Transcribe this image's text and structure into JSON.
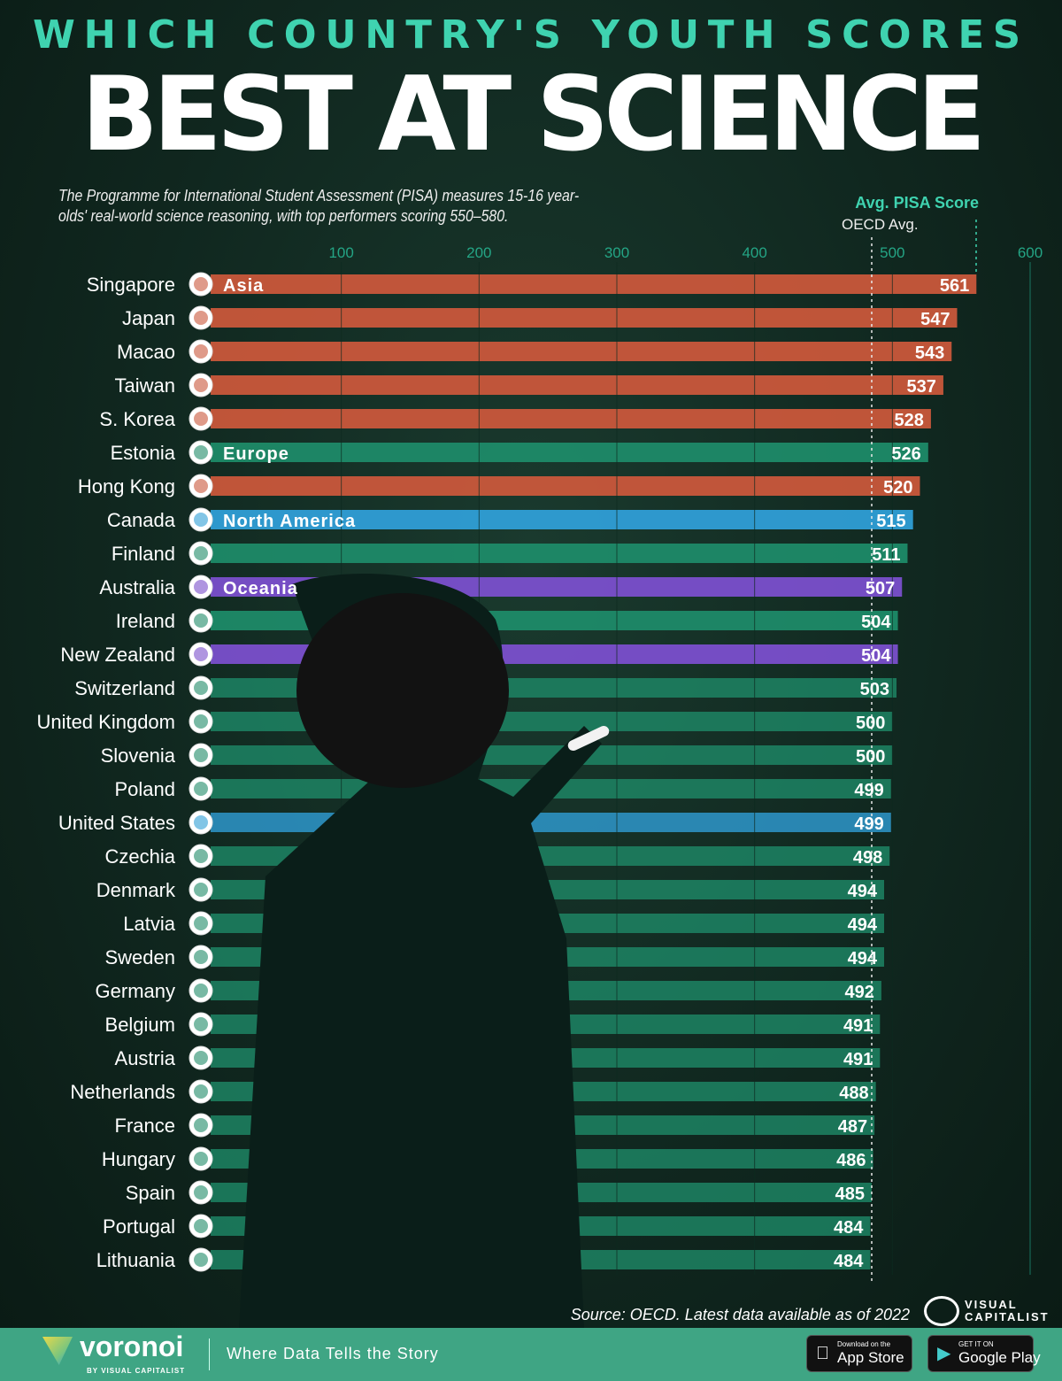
{
  "header": {
    "kicker": "WHICH COUNTRY'S YOUTH SCORES",
    "title": "BEST AT SCIENCE",
    "subtitle": "The Programme for International Student Assessment (PISA) measures 15-16 year-olds' real-world science reasoning, with top performers scoring 550–580."
  },
  "chart_data": {
    "type": "bar",
    "orientation": "horizontal",
    "xlabel": "Avg. PISA Score",
    "reference_line_label": "OECD Avg.",
    "reference_line_value": 485,
    "xlim": [
      0,
      600
    ],
    "ticks": [
      "100",
      "200",
      "300",
      "400",
      "500",
      "600"
    ],
    "region_colors": {
      "Asia": "#c9573b",
      "Europe": "#1e8a68",
      "North America": "#2f9ed6",
      "Oceania": "#7a4fcc"
    },
    "categories": [
      "Singapore",
      "Japan",
      "Macao",
      "Taiwan",
      "S. Korea",
      "Estonia",
      "Hong Kong",
      "Canada",
      "Finland",
      "Australia",
      "Ireland",
      "New Zealand",
      "Switzerland",
      "United Kingdom",
      "Slovenia",
      "Poland",
      "United States",
      "Czechia",
      "Denmark",
      "Latvia",
      "Sweden",
      "Germany",
      "Belgium",
      "Austria",
      "Netherlands",
      "France",
      "Hungary",
      "Spain",
      "Portugal",
      "Lithuania"
    ],
    "values": [
      561,
      547,
      543,
      537,
      528,
      526,
      520,
      515,
      511,
      507,
      504,
      504,
      503,
      500,
      500,
      499,
      499,
      498,
      494,
      494,
      494,
      492,
      491,
      491,
      488,
      487,
      486,
      485,
      484,
      484
    ],
    "regions": [
      "Asia",
      "Asia",
      "Asia",
      "Asia",
      "Asia",
      "Europe",
      "Asia",
      "North America",
      "Europe",
      "Oceania",
      "Europe",
      "Oceania",
      "Europe",
      "Europe",
      "Europe",
      "Europe",
      "North America",
      "Europe",
      "Europe",
      "Europe",
      "Europe",
      "Europe",
      "Europe",
      "Europe",
      "Europe",
      "Europe",
      "Europe",
      "Europe",
      "Europe",
      "Europe"
    ],
    "region_labels": {
      "0": "Asia",
      "5": "Europe",
      "7": "North America",
      "9": "Oceania"
    }
  },
  "footer": {
    "source": "Source: OECD. Latest data available  as of 2022",
    "vc_brand": "VISUAL CAPITALIST",
    "voronoi": "voronoi",
    "voronoi_by": "BY VISUAL CAPITALIST",
    "tagline": "Where Data Tells the Story",
    "appstore_small": "Download on the",
    "appstore_big": "App Store",
    "play_small": "GET IT ON",
    "play_big": "Google Play"
  }
}
